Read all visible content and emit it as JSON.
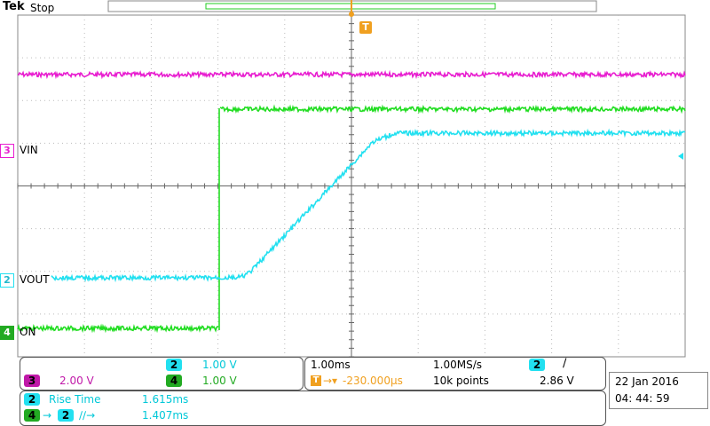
{
  "header": {
    "brand": "Tek",
    "state": "Stop"
  },
  "colors": {
    "ch1": "#e81ed0",
    "ch2": "#22e0f0",
    "ch4": "#22dd22",
    "trigger": "#f0a020",
    "grid": "#bbbbbb"
  },
  "trigger_marker": "T",
  "channel_labels": {
    "vin": {
      "num": "3",
      "text": "VIN"
    },
    "vout": {
      "num": "2",
      "text": "VOUT"
    },
    "on": {
      "num": "4",
      "text": "ON"
    }
  },
  "scales": {
    "ch2": {
      "num": "2",
      "value": "1.00 V"
    },
    "ch3": {
      "num": "3",
      "value": "2.00 V"
    },
    "ch4": {
      "num": "4",
      "value": "1.00 V"
    }
  },
  "timebase": {
    "time_div": "1.00ms",
    "sample_rate": "1.00MS/s",
    "trigger_offset": "-230.000µs",
    "record_length": "10k points",
    "trigger_source": "2",
    "trigger_slope": "∕",
    "trigger_level": "2.86 V"
  },
  "measurements": [
    {
      "source": "2",
      "name": "Rise Time",
      "value": "1.615ms"
    },
    {
      "source": "4",
      "target": "2",
      "name": "∕∕→",
      "value": "1.407ms"
    }
  ],
  "datetime": {
    "date": "22 Jan   2016",
    "time": "04: 44: 59"
  }
}
